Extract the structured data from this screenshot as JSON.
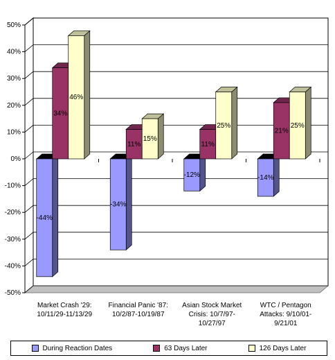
{
  "chart_data": {
    "type": "bar",
    "title": "",
    "xlabel": "",
    "ylabel": "",
    "ylim": [
      -50,
      50
    ],
    "yticks": [
      "50%",
      "40%",
      "30%",
      "20%",
      "10%",
      "0%",
      "-10%",
      "-20%",
      "-30%",
      "-40%",
      "-50%"
    ],
    "categories": [
      [
        "Market Crash '29:",
        "10/11/29-11/13/29"
      ],
      [
        "Financial Panic '87:",
        "10/2/87-10/19/87"
      ],
      [
        "Asian Stock Market",
        "Crisis: 10/7/97-",
        "10/27/97"
      ],
      [
        "WTC / Pentagon",
        "Attacks: 9/10/01-",
        "9/21/01"
      ]
    ],
    "series": [
      {
        "name": "During Reaction Dates",
        "values": [
          -44,
          -34,
          -12,
          -14
        ],
        "labels": [
          "-44%",
          "-34%",
          "-12%",
          "-14%"
        ],
        "color": "#9999ff"
      },
      {
        "name": "63 Days Later",
        "values": [
          34,
          11,
          11,
          21
        ],
        "labels": [
          "34%",
          "11%",
          "11%",
          "21%"
        ],
        "color": "#993366"
      },
      {
        "name": "126 Days Later",
        "values": [
          46,
          15,
          25,
          25
        ],
        "labels": [
          "46%",
          "15%",
          "25%",
          "25%"
        ],
        "color": "#ffffcc"
      }
    ],
    "grid": true,
    "three_d": true,
    "legend_position": "bottom"
  }
}
